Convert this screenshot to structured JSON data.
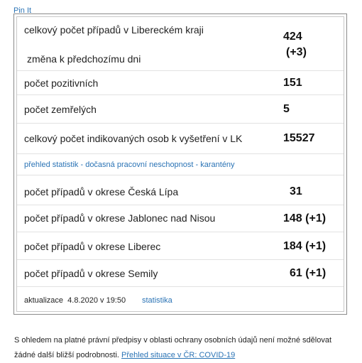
{
  "pin_link": "Pin It",
  "rows": {
    "total_region_label": "celkový počet případů v Libereckém kraji",
    "change_label": "změna k předchozímu dni",
    "total_value": "424",
    "change_value": "(+3)",
    "positive_label": "počet pozitivních",
    "positive_value": "151",
    "deaths_label": "počet zemřelých",
    "deaths_value": "5",
    "indicated_label": "celkový počet indikovaných osob k vyšetření v LK",
    "indicated_value": "15527",
    "stats_link": "přehled statistik - dočasná pracovní neschopnost - karantény",
    "ceska_lipa_label": "počet případů v okrese Česká Lípa",
    "ceska_lipa_value": "31",
    "jablonec_label": "počet případů v okrese Jablonec nad Nisou",
    "jablonec_value": "148 (+1)",
    "liberec_label": "počet případů v okrese Liberec",
    "liberec_value": "184 (+1)",
    "semily_label": "počet případů v okrese Semily",
    "semily_value": "61 (+1)",
    "update_text": "aktualizace  4.8.2020 v 19:50",
    "update_link": "statistika"
  },
  "footer": {
    "note_text": "S ohledem na platné právní předpisy v oblasti ochrany osobních údajů není možné sdělovat žádné další bližší podrobnosti.",
    "note_link": "Přehled situace v ČR: COVID-19"
  }
}
